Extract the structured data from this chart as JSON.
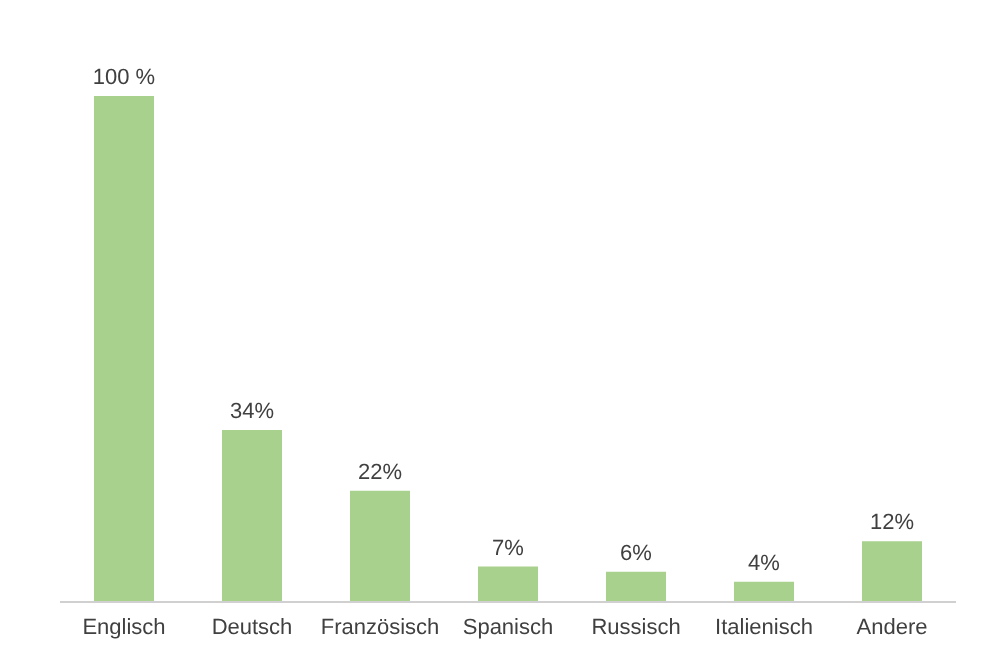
{
  "chart_data": {
    "type": "bar",
    "categories": [
      "Englisch",
      "Deutsch",
      "Französisch",
      "Spanisch",
      "Russisch",
      "Italienisch",
      "Andere"
    ],
    "values": [
      100,
      34,
      22,
      7,
      6,
      4,
      12
    ],
    "value_labels": [
      "100 %",
      "34%",
      "22%",
      "7%",
      "6%",
      "4%",
      "12%"
    ],
    "color": "#a9d18e",
    "grid": false,
    "legend": false
  }
}
